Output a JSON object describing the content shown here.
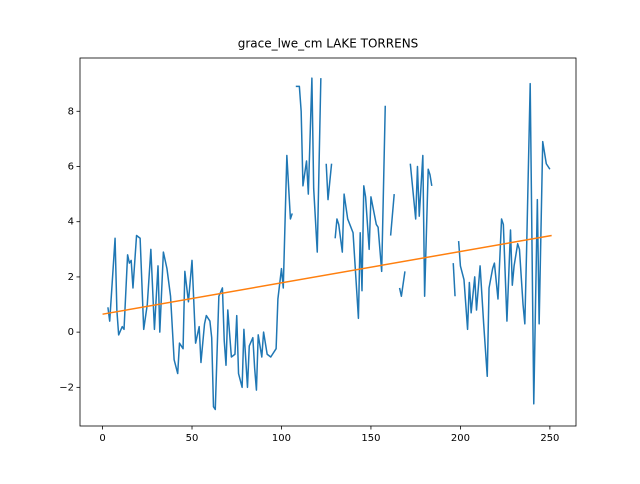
{
  "chart_data": {
    "type": "line",
    "title": "grace_lwe_cm LAKE TORRENS",
    "xlim": [
      -12.6,
      264.6
    ],
    "xticks": [
      0,
      50,
      100,
      150,
      200,
      250
    ],
    "ylim": [
      -3.4,
      9.93
    ],
    "yticks": [
      {
        "value": -2,
        "label": "−2"
      },
      0,
      2,
      4,
      6,
      8
    ],
    "series": [
      {
        "color": "#1f77b4",
        "x": [
          3,
          4,
          7,
          8,
          9,
          11,
          12,
          14,
          15,
          16,
          17,
          19,
          21,
          23,
          25,
          27,
          29,
          31,
          32,
          34,
          36,
          38,
          40,
          42,
          43,
          45,
          46,
          48,
          50,
          52,
          54,
          55,
          57,
          58,
          60,
          61,
          62,
          63,
          65,
          67,
          68,
          69,
          70,
          72,
          74,
          75,
          76,
          78,
          79,
          81,
          82,
          84,
          85,
          86,
          87,
          89,
          90,
          92,
          94,
          97,
          98,
          100,
          101,
          103,
          105,
          106,
          107,
          108,
          110,
          111,
          112,
          114,
          115,
          117,
          118,
          120,
          122,
          123,
          125,
          126,
          128,
          129,
          130,
          131,
          132,
          134,
          135,
          137,
          140,
          143,
          144,
          145,
          146,
          147,
          149,
          150,
          153,
          154,
          156,
          158,
          159,
          161,
          163,
          164,
          166,
          167,
          169,
          170,
          172,
          175,
          176,
          177,
          179,
          180,
          182,
          183,
          184,
          185,
          196,
          197,
          198,
          199,
          200,
          202,
          204,
          205,
          206,
          208,
          209,
          211,
          213,
          215,
          216,
          218,
          219,
          221,
          223,
          224,
          226,
          228,
          229,
          230,
          232,
          233,
          235,
          236,
          237,
          239,
          241,
          243,
          244,
          246,
          248,
          250
        ],
        "values": [
          0.9,
          0.4,
          3.4,
          0.8,
          -0.1,
          0.2,
          0.1,
          2.8,
          2.5,
          2.6,
          1.6,
          3.5,
          3.4,
          0.1,
          1.0,
          3.0,
          0.1,
          2.4,
          0.0,
          2.9,
          2.3,
          1.3,
          -1.0,
          -1.5,
          -0.4,
          -0.6,
          2.2,
          1.1,
          2.6,
          -0.4,
          0.2,
          -1.1,
          0.3,
          0.6,
          0.4,
          -0.2,
          -2.7,
          -2.8,
          1.3,
          1.6,
          -0.3,
          -1.2,
          0.8,
          -0.9,
          -0.8,
          0.6,
          -1.5,
          -2.0,
          0.1,
          -2.0,
          -0.5,
          -0.2,
          -1.3,
          -2.1,
          -0.1,
          -0.9,
          0.0,
          -0.8,
          -0.9,
          -0.6,
          1.2,
          2.3,
          1.6,
          6.4,
          4.1,
          4.3,
          null,
          8.9,
          8.9,
          8.0,
          5.3,
          6.2,
          5.0,
          9.2,
          5.2,
          2.9,
          9.2,
          null,
          6.1,
          4.8,
          6.1,
          null,
          3.4,
          4.1,
          3.9,
          2.9,
          5.0,
          4.1,
          3.6,
          0.5,
          3.6,
          1.5,
          5.3,
          4.9,
          3.0,
          4.9,
          3.9,
          3.8,
          2.2,
          8.2,
          null,
          3.5,
          5.0,
          null,
          1.6,
          1.3,
          2.2,
          null,
          6.1,
          4.1,
          6.0,
          4.2,
          6.4,
          1.3,
          5.9,
          5.7,
          5.3,
          null,
          2.5,
          1.3,
          null,
          3.3,
          2.4,
          1.9,
          0.1,
          1.8,
          0.7,
          2.0,
          0.8,
          2.4,
          0.3,
          -1.6,
          1.6,
          2.3,
          2.5,
          1.2,
          4.1,
          3.9,
          0.4,
          3.7,
          1.7,
          2.4,
          3.2,
          3.0,
          1.0,
          0.3,
          3.0,
          9.0,
          -2.6,
          4.8,
          0.3,
          6.9,
          6.1,
          5.9
        ]
      },
      {
        "color": "#ff7f0e",
        "x": [
          0,
          251
        ],
        "values": [
          0.65,
          3.5
        ]
      }
    ]
  }
}
